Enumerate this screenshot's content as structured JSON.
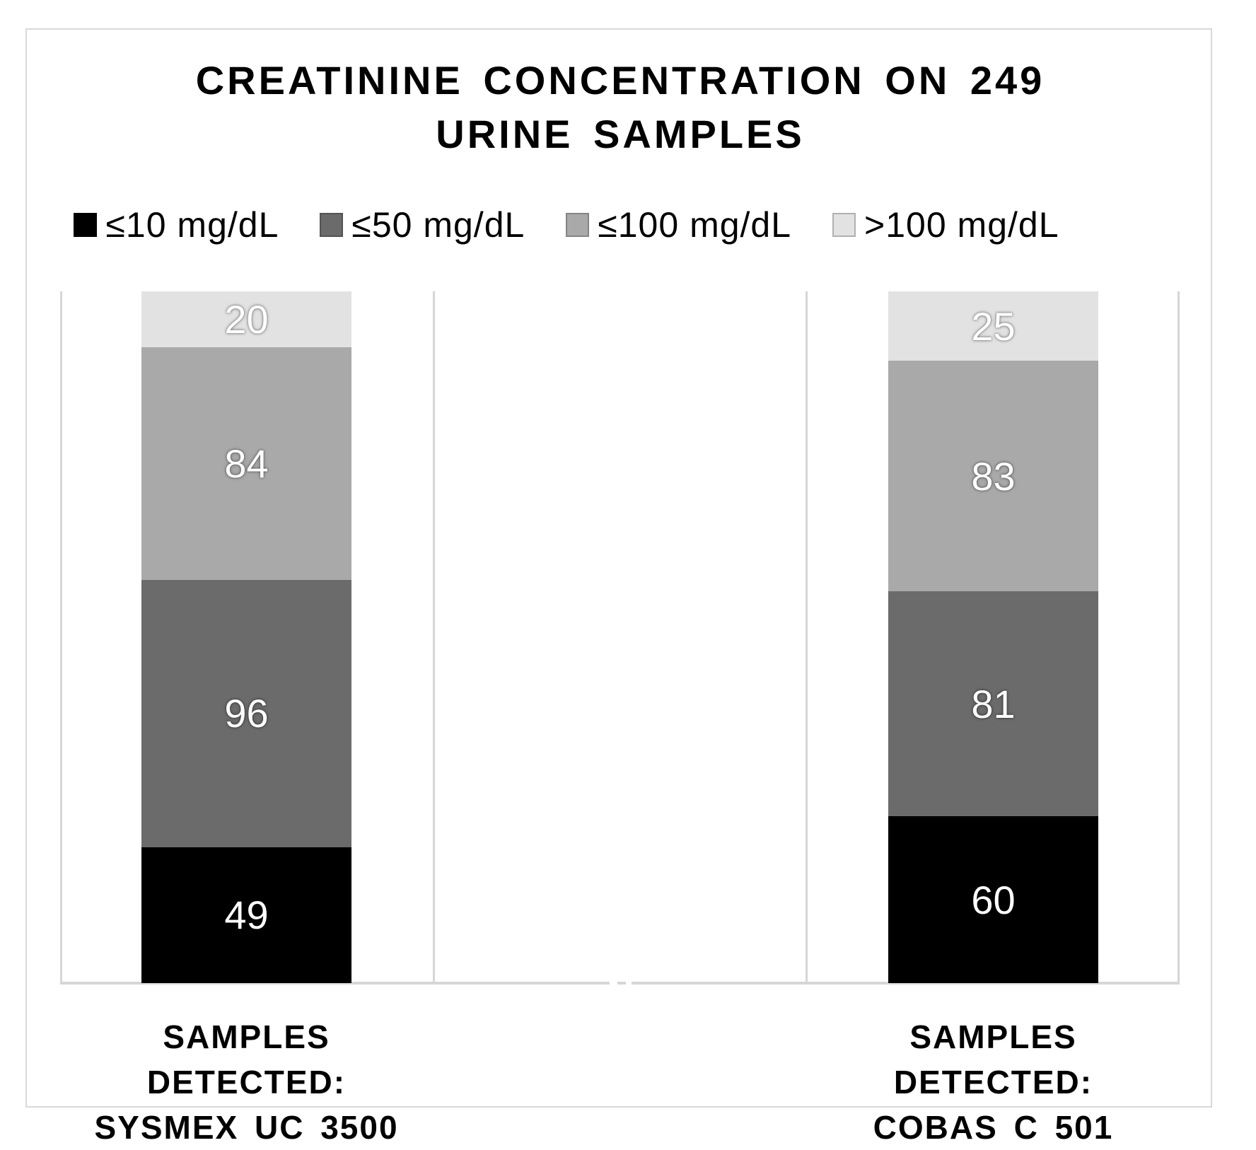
{
  "header": {
    "title_line1": "CREATININE CONCENTRATION ON 249",
    "title_line2": "URINE SAMPLES"
  },
  "chart_data": {
    "type": "bar",
    "variant": "stacked-column",
    "title": "CREATININE CONCENTRATION ON 249 URINE SAMPLES",
    "total": 249,
    "categories": [
      "SAMPLES DETECTED: SYSMEX UC 3500",
      "SAMPLES DETECTED: COBAS C 501"
    ],
    "series": [
      {
        "name": "≤10 mg/dL",
        "color": "#000000",
        "values": [
          49,
          60
        ]
      },
      {
        "name": "≤50 mg/dL",
        "color": "#6b6b6b",
        "values": [
          96,
          81
        ]
      },
      {
        "name": "≤100 mg/dL",
        "color": "#a9a9a9",
        "values": [
          84,
          83
        ]
      },
      {
        "name": ">100 mg/dL",
        "color": "#e2e2e2",
        "values": [
          20,
          25
        ]
      }
    ],
    "stack_order_bottom_to_top": [
      "≤10 mg/dL",
      "≤50 mg/dL",
      "≤100 mg/dL",
      ">100 mg/dL"
    ],
    "legend_position": "top",
    "ylim": [
      0,
      249
    ],
    "grid": "vertical category separator lines, hidden value axis, axis break dash at empty middle category"
  },
  "category_labels": [
    {
      "line1": "SAMPLES DETECTED:",
      "line2": "SYSMEX UC 3500"
    },
    {
      "line1": "SAMPLES DETECTED:",
      "line2": "COBAS C 501"
    }
  ],
  "colors": {
    "frame_border": "#d9d9d9",
    "gridline": "#d6d6d6",
    "axis": "#d6d6d6",
    "segment_value_text": "#ffffff",
    "title_text": "#000000"
  }
}
